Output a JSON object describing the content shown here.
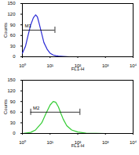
{
  "chart_data": [
    {
      "type": "line",
      "log": "x",
      "color": "#2b2bd6",
      "x_label": "FL1-H",
      "y_label": "Counts",
      "x": [
        1,
        1.3,
        1.6,
        2,
        2.5,
        3,
        3.5,
        4,
        5,
        6,
        8,
        10,
        13,
        16,
        20,
        30,
        50,
        100,
        1000,
        10000
      ],
      "values": [
        10,
        30,
        60,
        90,
        110,
        118,
        112,
        95,
        65,
        40,
        20,
        10,
        5,
        3,
        2,
        1,
        0,
        0,
        0,
        0
      ],
      "xlim": [
        1,
        10000
      ],
      "xticks": [
        {
          "value": 1,
          "label": "10⁰"
        },
        {
          "value": 10,
          "label": "10¹"
        },
        {
          "value": 100,
          "label": "10²"
        },
        {
          "value": 1000,
          "label": "10³"
        },
        {
          "value": 10000,
          "label": "10⁴"
        }
      ],
      "ylim": [
        0,
        150
      ],
      "yticks": [
        0,
        30,
        60,
        90,
        120,
        150
      ],
      "markers": [
        {
          "label": "M1",
          "x": [
            1,
            15
          ],
          "y": 75
        }
      ]
    },
    {
      "type": "line",
      "log": "x",
      "color": "#33cc33",
      "x_label": "FL1-H",
      "y_label": "Counts",
      "x": [
        1,
        2,
        3,
        5,
        7,
        10,
        13,
        16,
        20,
        25,
        30,
        40,
        60,
        100,
        200,
        1000,
        10000
      ],
      "values": [
        0,
        3,
        10,
        30,
        55,
        80,
        90,
        88,
        75,
        55,
        40,
        22,
        10,
        4,
        1,
        0,
        0
      ],
      "xlim": [
        1,
        10000
      ],
      "xticks": [
        {
          "value": 1,
          "label": "10⁰"
        },
        {
          "value": 10,
          "label": "10¹"
        },
        {
          "value": 100,
          "label": "10²"
        },
        {
          "value": 1000,
          "label": "10³"
        },
        {
          "value": 10000,
          "label": "10⁴"
        }
      ],
      "ylim": [
        0,
        150
      ],
      "yticks": [
        0,
        30,
        60,
        90,
        120,
        150
      ],
      "markers": [
        {
          "label": "M2",
          "x": [
            2,
            120
          ],
          "y": 60
        }
      ]
    }
  ]
}
